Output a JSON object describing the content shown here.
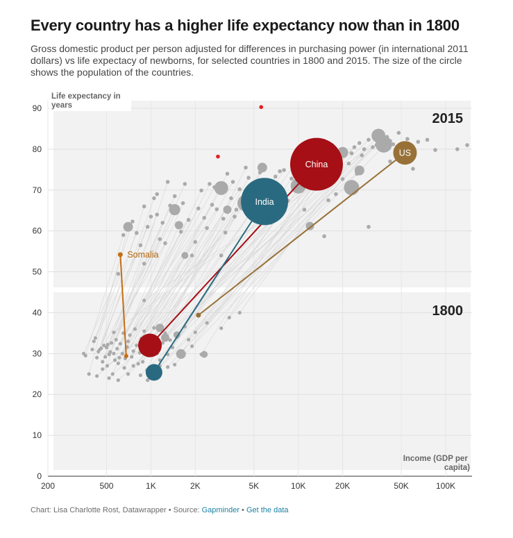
{
  "title": "Every country has a higher life expectancy now than in 1800",
  "subtitle": "Gross domestic product per person adjusted for differences in purchasing power (in international 2011 dollars) vs life expectacy of newborns, for selected countries in 1800 and 2015. The size of the circle shows the population of the countries.",
  "footer": {
    "credit": "Chart: Lisa Charlotte Rost, Datawrapper • Source: ",
    "source_link": "Gapminder",
    "separator": " • ",
    "data_link": "Get the data"
  },
  "colors": {
    "china": "#a50f15",
    "india": "#2a6a80",
    "us": "#987138",
    "somalia": "#c56d12",
    "other": "#aaaaaa",
    "highlight_red": "#e51c23",
    "panel": "#f2f2f2"
  },
  "chart_data": {
    "type": "scatter",
    "x_scale": "log",
    "xlim": [
      200,
      150000
    ],
    "ylim": [
      0,
      93
    ],
    "x_ticks": [
      200,
      500,
      1000,
      2000,
      5000,
      10000,
      20000,
      50000,
      100000
    ],
    "x_tick_labels": [
      "200",
      "500",
      "1K",
      "2K",
      "5K",
      "10K",
      "20K",
      "50K",
      "100K"
    ],
    "y_ticks": [
      0,
      10,
      20,
      30,
      40,
      50,
      60,
      70,
      80,
      90
    ],
    "xlabel": "Income (GDP per capita)",
    "ylabel": "Life expectancy in years",
    "panels": [
      "2015",
      "1800"
    ],
    "highlighted": [
      {
        "name": "China",
        "label": "China",
        "x1800": 985,
        "y1800": 32,
        "x2015": 13300,
        "y2015": 76.3
      },
      {
        "name": "India",
        "label": "India",
        "x1800": 1050,
        "y1800": 25.4,
        "x2015": 5900,
        "y2015": 67.2
      },
      {
        "name": "US",
        "label": "US",
        "x1800": 2100,
        "y1800": 39.4,
        "x2015": 53000,
        "y2015": 79.1
      },
      {
        "name": "Somalia",
        "label": "Somalia",
        "x1800": 680,
        "y1800": 29.4,
        "x2015": 620,
        "y2015": 54.2
      }
    ],
    "others_1800": [
      [
        350,
        30
      ],
      [
        360,
        29.5
      ],
      [
        380,
        25
      ],
      [
        400,
        31
      ],
      [
        410,
        33
      ],
      [
        420,
        33.8
      ],
      [
        430,
        29
      ],
      [
        440,
        30.5
      ],
      [
        450,
        31
      ],
      [
        460,
        31.3
      ],
      [
        470,
        28
      ],
      [
        480,
        32
      ],
      [
        490,
        29.2
      ],
      [
        500,
        31.5
      ],
      [
        505,
        27
      ],
      [
        510,
        32.2
      ],
      [
        520,
        29.8
      ],
      [
        530,
        30.4
      ],
      [
        540,
        32.6
      ],
      [
        550,
        25
      ],
      [
        560,
        30
      ],
      [
        570,
        28.4
      ],
      [
        580,
        33.4
      ],
      [
        590,
        31.2
      ],
      [
        600,
        27.6
      ],
      [
        610,
        29
      ],
      [
        620,
        32.4
      ],
      [
        640,
        30
      ],
      [
        650,
        35
      ],
      [
        660,
        26.5
      ],
      [
        670,
        28.8
      ],
      [
        690,
        31.6
      ],
      [
        700,
        33
      ],
      [
        720,
        34.5
      ],
      [
        740,
        29.2
      ],
      [
        760,
        30.6
      ],
      [
        780,
        36
      ],
      [
        800,
        32
      ],
      [
        820,
        27.5
      ],
      [
        840,
        30.2
      ],
      [
        860,
        33.7
      ],
      [
        880,
        28
      ],
      [
        900,
        35.5
      ],
      [
        920,
        31
      ],
      [
        940,
        26
      ],
      [
        960,
        29.5
      ],
      [
        1000,
        33
      ],
      [
        1050,
        36.3
      ],
      [
        1100,
        30
      ],
      [
        1150,
        28.4
      ],
      [
        1200,
        32.6
      ],
      [
        1250,
        35
      ],
      [
        1300,
        29.8
      ],
      [
        1350,
        33.3
      ],
      [
        1400,
        31.5
      ],
      [
        1500,
        34
      ],
      [
        1550,
        29.5
      ],
      [
        1600,
        30
      ],
      [
        1700,
        36.6
      ],
      [
        1800,
        33.4
      ],
      [
        1900,
        31.8
      ],
      [
        2000,
        35.2
      ],
      [
        2200,
        29.8
      ],
      [
        2400,
        37.5
      ],
      [
        3000,
        36.2
      ],
      [
        3400,
        38.8
      ],
      [
        4000,
        40
      ],
      [
        560,
        35.2
      ],
      [
        430,
        24.5
      ],
      [
        470,
        26.2
      ],
      [
        520,
        24
      ],
      [
        600,
        23.5
      ],
      [
        700,
        25
      ],
      [
        760,
        27
      ],
      [
        850,
        24.7
      ],
      [
        950,
        23.5
      ],
      [
        1150,
        27
      ],
      [
        1300,
        26.7
      ],
      [
        1450,
        27.3
      ],
      [
        900,
        43
      ]
    ],
    "others_2015": [
      [
        600,
        49.5
      ],
      [
        650,
        59
      ],
      [
        700,
        60.8
      ],
      [
        750,
        62.3
      ],
      [
        800,
        59.5
      ],
      [
        850,
        56.5
      ],
      [
        900,
        66
      ],
      [
        950,
        61
      ],
      [
        1000,
        63.5
      ],
      [
        1050,
        68
      ],
      [
        1100,
        64
      ],
      [
        1150,
        58
      ],
      [
        1200,
        62
      ],
      [
        1250,
        57
      ],
      [
        1300,
        72
      ],
      [
        1350,
        66.2
      ],
      [
        1400,
        64.5
      ],
      [
        1450,
        68.5
      ],
      [
        1500,
        65.2
      ],
      [
        1550,
        61.2
      ],
      [
        1600,
        59.8
      ],
      [
        1650,
        66.8
      ],
      [
        1700,
        71.5
      ],
      [
        1800,
        62.7
      ],
      [
        1900,
        54
      ],
      [
        2000,
        57.3
      ],
      [
        2100,
        65.5
      ],
      [
        2200,
        69.9
      ],
      [
        2300,
        63.2
      ],
      [
        2400,
        60.7
      ],
      [
        2500,
        71.5
      ],
      [
        2600,
        66.4
      ],
      [
        2700,
        70.7
      ],
      [
        2800,
        65.3
      ],
      [
        3000,
        70.5
      ],
      [
        3100,
        63
      ],
      [
        3200,
        59.6
      ],
      [
        3300,
        74
      ],
      [
        3500,
        68
      ],
      [
        3600,
        72
      ],
      [
        3700,
        63.5
      ],
      [
        3800,
        65.2
      ],
      [
        4000,
        70.2
      ],
      [
        4200,
        67.2
      ],
      [
        4400,
        75.5
      ],
      [
        4600,
        73
      ],
      [
        5000,
        70.2
      ],
      [
        5500,
        74.3
      ],
      [
        5800,
        75.3
      ],
      [
        6500,
        62
      ],
      [
        7000,
        73.3
      ],
      [
        7500,
        74.6
      ],
      [
        8000,
        74.9
      ],
      [
        8500,
        67.4
      ],
      [
        9000,
        72.8
      ],
      [
        9500,
        76.5
      ],
      [
        10000,
        70.3
      ],
      [
        11000,
        65.2
      ],
      [
        12000,
        75
      ],
      [
        14000,
        77.5
      ],
      [
        15000,
        74.3
      ],
      [
        16000,
        67.5
      ],
      [
        17000,
        81
      ],
      [
        18000,
        78
      ],
      [
        19000,
        79.2
      ],
      [
        20000,
        72.7
      ],
      [
        22000,
        76.5
      ],
      [
        23000,
        79
      ],
      [
        24000,
        80.5
      ],
      [
        25000,
        74
      ],
      [
        26000,
        81.5
      ],
      [
        27000,
        78.5
      ],
      [
        28000,
        80
      ],
      [
        30000,
        82.3
      ],
      [
        32000,
        80.5
      ],
      [
        34000,
        81
      ],
      [
        35000,
        83.2
      ],
      [
        36000,
        82.5
      ],
      [
        38000,
        80.8
      ],
      [
        40000,
        83
      ],
      [
        42000,
        82
      ],
      [
        44000,
        81.2
      ],
      [
        46000,
        79.5
      ],
      [
        48000,
        84
      ],
      [
        55000,
        82.5
      ],
      [
        60000,
        75.2
      ],
      [
        65000,
        81.8
      ],
      [
        75000,
        82.3
      ],
      [
        85000,
        79.8
      ],
      [
        120000,
        80
      ],
      [
        140000,
        81
      ],
      [
        42000,
        77
      ],
      [
        30000,
        61
      ],
      [
        18000,
        69
      ],
      [
        15000,
        58.7
      ],
      [
        900,
        52
      ],
      [
        1100,
        69
      ],
      [
        3000,
        54
      ]
    ],
    "other_red_2015": [
      [
        2850,
        78.2
      ],
      [
        5600,
        90.3
      ]
    ],
    "big_gray_2015": [
      {
        "x": 3000,
        "y": 70.5,
        "r": 10
      },
      {
        "x": 1450,
        "y": 65.2,
        "r": 8
      },
      {
        "x": 700,
        "y": 61,
        "r": 7
      },
      {
        "x": 3300,
        "y": 65.2,
        "r": 6
      },
      {
        "x": 10000,
        "y": 71,
        "r": 11
      },
      {
        "x": 12000,
        "y": 61.2,
        "r": 6
      },
      {
        "x": 23000,
        "y": 70.6,
        "r": 11
      },
      {
        "x": 20000,
        "y": 79.2,
        "r": 8
      },
      {
        "x": 35000,
        "y": 83.3,
        "r": 10
      },
      {
        "x": 38000,
        "y": 81.2,
        "r": 12
      },
      {
        "x": 26000,
        "y": 74.8,
        "r": 7
      },
      {
        "x": 5700,
        "y": 75.5,
        "r": 7
      },
      {
        "x": 1700,
        "y": 54,
        "r": 5
      },
      {
        "x": 4400,
        "y": 66.8,
        "r": 12
      },
      {
        "x": 1550,
        "y": 61.4,
        "r": 6
      }
    ],
    "big_gray_1800": [
      {
        "x": 1150,
        "y": 36.3,
        "r": 6
      },
      {
        "x": 1600,
        "y": 29.9,
        "r": 7
      },
      {
        "x": 1250,
        "y": 33.9,
        "r": 6
      },
      {
        "x": 1500,
        "y": 34.6,
        "r": 5
      },
      {
        "x": 2300,
        "y": 29.8,
        "r": 5
      }
    ]
  }
}
